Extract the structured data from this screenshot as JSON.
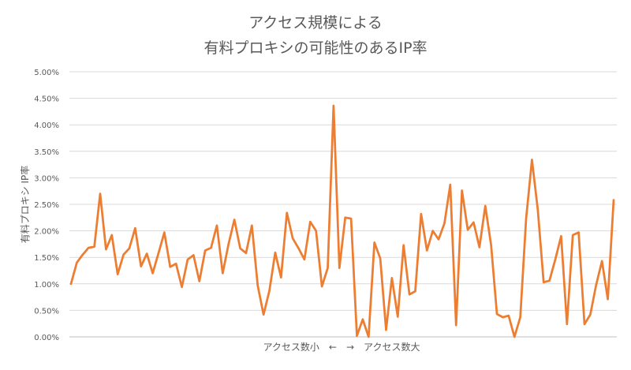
{
  "chart_data": {
    "type": "line",
    "title_line1": "アクセス規模による",
    "title_line2": "有料プロキシの可能性のあるIP率",
    "ylabel": "有料プロキシ IP率",
    "xlabel": "アクセス数小　←　→　アクセス数大",
    "ylim": [
      0,
      5.0
    ],
    "y_ticks": [
      "0.00%",
      "0.50%",
      "1.00%",
      "1.50%",
      "2.00%",
      "2.50%",
      "3.00%",
      "3.50%",
      "4.00%",
      "4.50%",
      "5.00%"
    ],
    "grid": true,
    "legend": "none",
    "series": [
      {
        "color": "#ED7D31",
        "values": [
          1.0,
          1.4,
          1.55,
          1.68,
          1.7,
          2.7,
          1.65,
          1.92,
          1.18,
          1.55,
          1.67,
          2.05,
          1.33,
          1.57,
          1.2,
          1.58,
          1.97,
          1.32,
          1.38,
          0.94,
          1.46,
          1.54,
          1.05,
          1.63,
          1.68,
          2.1,
          1.2,
          1.75,
          2.21,
          1.67,
          1.58,
          2.1,
          0.97,
          0.42,
          0.87,
          1.59,
          1.12,
          2.34,
          1.86,
          1.67,
          1.46,
          2.17,
          2.0,
          0.95,
          1.3,
          4.36,
          1.3,
          2.25,
          2.23,
          0.02,
          0.33,
          0.0,
          1.78,
          1.48,
          0.13,
          1.11,
          0.38,
          1.73,
          0.8,
          0.86,
          2.32,
          1.63,
          2.0,
          1.84,
          2.14,
          2.87,
          0.22,
          2.76,
          2.02,
          2.16,
          1.69,
          2.47,
          1.73,
          0.43,
          0.37,
          0.4,
          0.0,
          0.37,
          2.23,
          3.34,
          2.4,
          1.03,
          1.06,
          1.46,
          1.9,
          0.24,
          1.92,
          1.97,
          0.24,
          0.42,
          0.98,
          1.43,
          0.71,
          2.58
        ]
      }
    ]
  }
}
